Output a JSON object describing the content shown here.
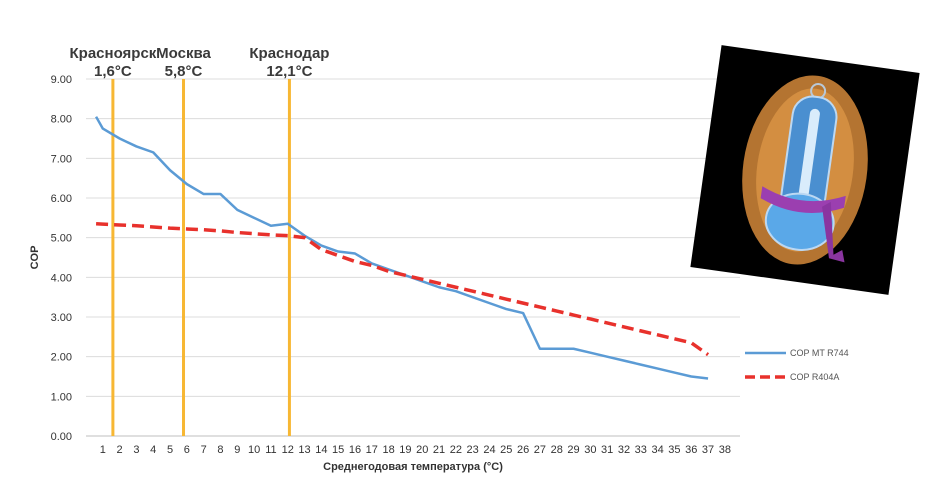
{
  "chart_data": {
    "type": "line",
    "xlabel": "Среднегодовая температура (°C)",
    "ylabel": "COP",
    "ylim": [
      0,
      9
    ],
    "yticks": [
      "0.00",
      "1.00",
      "2.00",
      "3.00",
      "4.00",
      "5.00",
      "6.00",
      "7.00",
      "8.00",
      "9.00"
    ],
    "xlim": [
      0,
      38
    ],
    "xticks": [
      "1",
      "2",
      "3",
      "4",
      "5",
      "6",
      "7",
      "8",
      "9",
      "10",
      "11",
      "12",
      "13",
      "14",
      "15",
      "16",
      "17",
      "18",
      "19",
      "20",
      "21",
      "22",
      "23",
      "24",
      "25",
      "26",
      "27",
      "28",
      "29",
      "30",
      "31",
      "32",
      "33",
      "34",
      "35",
      "36",
      "37",
      "38"
    ],
    "grid": true,
    "legend_position": "right",
    "series": [
      {
        "name": "COP MT R744",
        "color": "#5b9bd5",
        "style": "solid",
        "x": [
          0.6,
          1,
          2,
          3,
          4,
          5,
          6,
          7,
          8,
          9,
          10,
          11,
          12,
          13,
          14,
          15,
          16,
          17,
          18,
          19,
          20,
          21,
          22,
          23,
          24,
          25,
          26,
          27,
          28,
          29,
          30,
          31,
          32,
          33,
          34,
          35,
          36,
          37
        ],
        "values": [
          8.05,
          7.75,
          7.5,
          7.3,
          7.15,
          6.7,
          6.35,
          6.1,
          6.1,
          5.7,
          5.5,
          5.3,
          5.35,
          5.05,
          4.8,
          4.65,
          4.6,
          4.35,
          4.2,
          4.05,
          3.9,
          3.75,
          3.65,
          3.5,
          3.35,
          3.2,
          3.1,
          2.2,
          2.2,
          2.2,
          2.1,
          2.0,
          1.9,
          1.8,
          1.7,
          1.6,
          1.5,
          1.45
        ]
      },
      {
        "name": "COP R404A",
        "color": "#e8312c",
        "style": "dashed",
        "x": [
          0.6,
          1,
          2,
          3,
          4,
          5,
          6,
          7,
          8,
          9,
          10,
          11,
          12,
          13,
          14,
          15,
          16,
          17,
          18,
          19,
          20,
          21,
          22,
          23,
          24,
          25,
          26,
          27,
          28,
          29,
          30,
          31,
          32,
          33,
          34,
          35,
          36,
          37
        ],
        "values": [
          5.35,
          5.34,
          5.32,
          5.3,
          5.27,
          5.24,
          5.22,
          5.2,
          5.17,
          5.13,
          5.1,
          5.07,
          5.05,
          5.0,
          4.7,
          4.55,
          4.4,
          4.3,
          4.15,
          4.05,
          3.95,
          3.85,
          3.75,
          3.65,
          3.55,
          3.45,
          3.35,
          3.25,
          3.15,
          3.05,
          2.95,
          2.85,
          2.75,
          2.65,
          2.55,
          2.45,
          2.35,
          2.05
        ]
      }
    ],
    "vertical_lines": [
      {
        "city": "Красноярск",
        "temp_label": "1,6°C",
        "x": 1.6
      },
      {
        "city": "Москва",
        "temp_label": "5,8°C",
        "x": 5.8
      },
      {
        "city": "Краснодар",
        "temp_label": "12,1°C",
        "x": 12.1
      }
    ],
    "vline_color": "#f7b733"
  },
  "illustration": {
    "description_icon": "thermometer-with-scarf-icon",
    "background": "#000000",
    "glow": "#d4883a",
    "thermometer": "#5aa8e8",
    "scarf": "#9b3fb0"
  }
}
